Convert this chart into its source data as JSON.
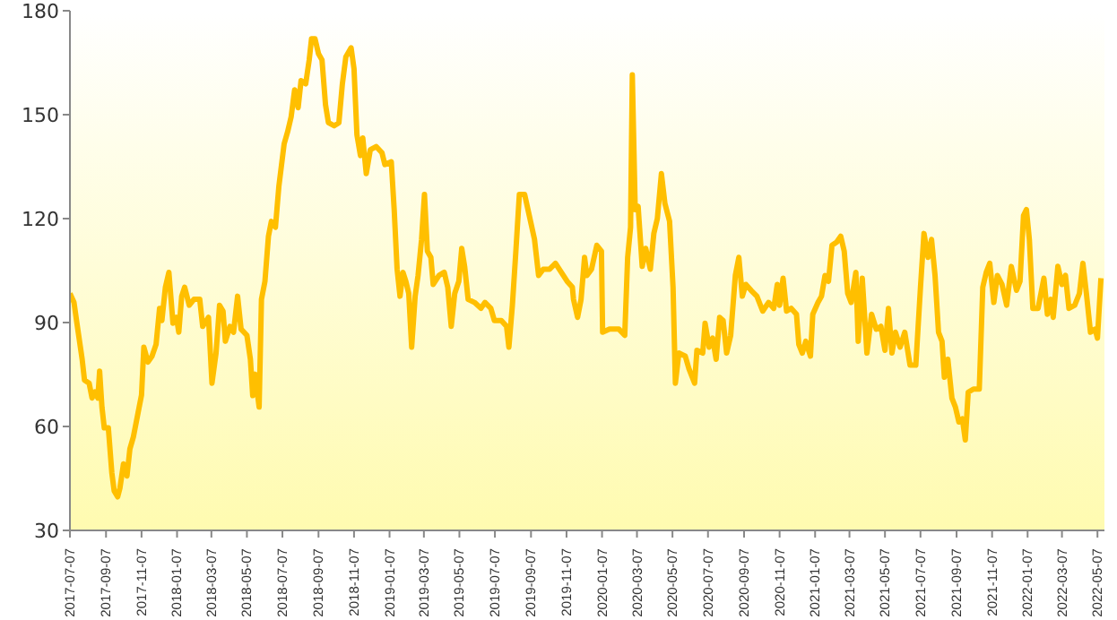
{
  "chart_data": {
    "type": "line",
    "x": [
      "2017-07-07",
      "2017-07-14",
      "2017-07-19",
      "2017-07-28",
      "2017-08-01",
      "2017-08-09",
      "2017-08-14",
      "2017-08-19",
      "2017-08-24",
      "2017-08-27",
      "2017-08-31",
      "2017-09-04",
      "2017-09-11",
      "2017-09-17",
      "2017-09-21",
      "2017-09-27",
      "2017-10-01",
      "2017-10-07",
      "2017-10-13",
      "2017-10-18",
      "2017-10-24",
      "2017-11-01",
      "2017-11-07",
      "2017-11-11",
      "2017-11-18",
      "2017-11-25",
      "2017-12-02",
      "2017-12-08",
      "2017-12-12",
      "2017-12-18",
      "2017-12-24",
      "2017-12-31",
      "2018-01-06",
      "2018-01-10",
      "2018-01-15",
      "2018-01-20",
      "2018-01-28",
      "2018-02-05",
      "2018-02-15",
      "2018-02-20",
      "2018-03-02",
      "2018-03-08",
      "2018-03-15",
      "2018-03-21",
      "2018-03-27",
      "2018-03-31",
      "2018-04-08",
      "2018-04-14",
      "2018-04-21",
      "2018-04-27",
      "2018-05-07",
      "2018-05-13",
      "2018-05-17",
      "2018-05-21",
      "2018-05-28",
      "2018-06-01",
      "2018-06-07",
      "2018-06-13",
      "2018-06-18",
      "2018-06-25",
      "2018-07-01",
      "2018-07-10",
      "2018-07-16",
      "2018-07-22",
      "2018-07-28",
      "2018-08-03",
      "2018-08-08",
      "2018-08-16",
      "2018-08-22",
      "2018-08-26",
      "2018-09-01",
      "2018-09-07",
      "2018-09-13",
      "2018-09-19",
      "2018-09-24",
      "2018-10-04",
      "2018-10-12",
      "2018-10-18",
      "2018-10-24",
      "2018-11-02",
      "2018-11-07",
      "2018-11-12",
      "2018-11-18",
      "2018-11-22",
      "2018-11-28",
      "2018-12-05",
      "2018-12-15",
      "2018-12-25",
      "2018-12-30",
      "2019-01-10",
      "2019-01-15",
      "2019-01-20",
      "2019-01-25",
      "2019-01-30",
      "2019-02-04",
      "2019-02-09",
      "2019-02-14",
      "2019-02-20",
      "2019-02-25",
      "2019-03-03",
      "2019-03-08",
      "2019-03-13",
      "2019-03-19",
      "2019-03-23",
      "2019-04-02",
      "2019-04-11",
      "2019-04-17",
      "2019-04-23",
      "2019-04-29",
      "2019-05-06",
      "2019-05-11",
      "2019-05-16",
      "2019-05-22",
      "2019-06-02",
      "2019-06-13",
      "2019-06-20",
      "2019-06-30",
      "2019-07-06",
      "2019-07-18",
      "2019-07-27",
      "2019-07-31",
      "2019-08-06",
      "2019-08-12",
      "2019-08-18",
      "2019-08-27",
      "2019-09-04",
      "2019-09-13",
      "2019-09-20",
      "2019-09-28",
      "2019-10-09",
      "2019-10-19",
      "2019-10-29",
      "2019-11-08",
      "2019-11-17",
      "2019-11-19",
      "2019-11-26",
      "2019-12-02",
      "2019-12-08",
      "2019-12-12",
      "2019-12-20",
      "2019-12-29",
      "2020-01-06",
      "2020-01-08",
      "2020-01-20",
      "2020-02-05",
      "2020-02-15",
      "2020-02-20",
      "2020-02-25",
      "2020-02-28",
      "2020-03-04",
      "2020-03-09",
      "2020-03-16",
      "2020-03-22",
      "2020-03-30",
      "2020-04-05",
      "2020-04-11",
      "2020-04-18",
      "2020-04-24",
      "2020-05-02",
      "2020-05-08",
      "2020-05-12",
      "2020-05-18",
      "2020-05-29",
      "2020-06-04",
      "2020-06-14",
      "2020-06-18",
      "2020-06-28",
      "2020-07-02",
      "2020-07-09",
      "2020-07-15",
      "2020-07-21",
      "2020-07-27",
      "2020-08-02",
      "2020-08-08",
      "2020-08-15",
      "2020-08-23",
      "2020-08-29",
      "2020-09-04",
      "2020-09-10",
      "2020-09-19",
      "2020-09-29",
      "2020-10-09",
      "2020-10-19",
      "2020-10-28",
      "2020-11-03",
      "2020-11-07",
      "2020-11-13",
      "2020-11-19",
      "2020-11-27",
      "2020-12-06",
      "2020-12-10",
      "2020-12-16",
      "2020-12-22",
      "2020-12-30",
      "2021-01-03",
      "2021-01-12",
      "2021-01-18",
      "2021-01-24",
      "2021-01-30",
      "2021-02-05",
      "2021-02-13",
      "2021-02-20",
      "2021-02-26",
      "2021-03-04",
      "2021-03-10",
      "2021-03-18",
      "2021-03-22",
      "2021-03-29",
      "2021-04-06",
      "2021-04-14",
      "2021-04-22",
      "2021-04-30",
      "2021-05-07",
      "2021-05-13",
      "2021-05-19",
      "2021-05-25",
      "2021-06-02",
      "2021-06-10",
      "2021-06-19",
      "2021-06-29",
      "2021-07-07",
      "2021-07-13",
      "2021-07-20",
      "2021-07-26",
      "2021-08-01",
      "2021-08-07",
      "2021-08-13",
      "2021-08-17",
      "2021-08-23",
      "2021-08-30",
      "2021-09-05",
      "2021-09-11",
      "2021-09-17",
      "2021-09-22",
      "2021-09-27",
      "2021-10-06",
      "2021-10-16",
      "2021-10-22",
      "2021-10-28",
      "2021-11-03",
      "2021-11-10",
      "2021-11-16",
      "2021-11-24",
      "2021-12-02",
      "2021-12-10",
      "2021-12-19",
      "2021-12-25",
      "2021-12-31",
      "2022-01-05",
      "2022-01-10",
      "2022-01-16",
      "2022-01-25",
      "2022-02-04",
      "2022-02-10",
      "2022-02-16",
      "2022-02-20",
      "2022-02-28",
      "2022-03-07",
      "2022-03-13",
      "2022-03-19",
      "2022-03-29",
      "2022-04-06",
      "2022-04-12",
      "2022-04-18",
      "2022-04-25",
      "2022-05-03",
      "2022-05-07",
      "2022-05-13"
    ],
    "series": [
      {
        "color": "#ffbf00",
        "values": [
          98.4,
          95.8,
          89.8,
          79.4,
          73.4,
          72.5,
          68.2,
          70,
          68.2,
          76,
          65.6,
          59.6,
          59.6,
          46.6,
          41.4,
          39.7,
          42.3,
          49.2,
          45.7,
          53.5,
          57,
          63.9,
          69.1,
          82.9,
          78.6,
          80.3,
          83.7,
          94.1,
          90.6,
          100.2,
          104.5,
          89.8,
          91.5,
          87.2,
          97.6,
          100.2,
          95,
          96.7,
          96.7,
          88.9,
          91.5,
          72.5,
          81.2,
          95,
          93.3,
          84.6,
          88.9,
          87.2,
          97.6,
          88.1,
          86.3,
          79.4,
          68.9,
          75.1,
          65.6,
          96.7,
          101.9,
          114.9,
          119.2,
          117.5,
          129.5,
          141.6,
          145.1,
          149.4,
          157.2,
          152,
          159.8,
          158.9,
          165.8,
          171.9,
          171.9,
          167.6,
          165.8,
          152.9,
          147.7,
          146.8,
          147.7,
          158.9,
          166.7,
          169.3,
          163.2,
          144.2,
          138.2,
          143.3,
          133,
          139.9,
          140.8,
          139,
          135.6,
          136.4,
          122.6,
          105.4,
          97.6,
          104.5,
          101.9,
          98.4,
          82.9,
          97.6,
          103.6,
          114,
          127,
          110.6,
          108.8,
          101,
          103.6,
          104.5,
          100.2,
          88.9,
          98.4,
          101.9,
          111.4,
          106.2,
          96.7,
          95.8,
          94.1,
          95.8,
          94.1,
          90.6,
          90.6,
          88.9,
          82.9,
          95,
          110.6,
          127,
          127,
          120.9,
          114,
          103.6,
          105.4,
          105.4,
          107.1,
          104.5,
          101.9,
          100.2,
          96.7,
          91.5,
          96.7,
          108.8,
          103.6,
          105.4,
          112.3,
          110.6,
          87.2,
          88.1,
          88.1,
          86.3,
          108.8,
          117.5,
          161.5,
          122.6,
          123.5,
          106.2,
          111.4,
          105.4,
          115.7,
          120,
          133,
          124.4,
          119.2,
          100.2,
          72.5,
          81.2,
          80.3,
          76.8,
          72.5,
          82,
          81.2,
          89.8,
          82.9,
          85.5,
          79.4,
          91.5,
          90.6,
          81.2,
          86.3,
          103.6,
          108.8,
          97.6,
          101,
          99.3,
          97.6,
          93.3,
          95.8,
          94.1,
          101,
          95,
          102.8,
          93.3,
          94.1,
          92.4,
          83.7,
          81.2,
          84.6,
          80.3,
          92.4,
          95.8,
          97.6,
          103.6,
          101.9,
          112.3,
          113.2,
          114.9,
          110.6,
          98.4,
          95.8,
          104.5,
          84.6,
          102.8,
          81.2,
          92.4,
          88.1,
          88.9,
          82,
          94.1,
          81.2,
          87.2,
          82.9,
          87.2,
          77.7,
          77.7,
          100.2,
          115.7,
          108.8,
          114,
          103.6,
          87.2,
          84.6,
          74.2,
          79.4,
          68.2,
          65.6,
          61.3,
          62.2,
          56.1,
          69.9,
          70.8,
          70.8,
          100.2,
          104.5,
          107.1,
          95.8,
          103.6,
          101,
          95,
          106.2,
          99.3,
          101.9,
          120.9,
          122.6,
          114,
          94.1,
          94.1,
          102.8,
          92.4,
          96.7,
          91.5,
          106.2,
          101,
          103.6,
          94.1,
          95,
          98.4,
          107.1,
          98.4,
          87.2,
          88.1,
          85.5,
          102.8
        ]
      }
    ],
    "xlim": [
      "2017-07-07",
      "2022-05-19"
    ],
    "xticks": [
      "2017-07-07",
      "2017-09-07",
      "2017-11-07",
      "2018-01-07",
      "2018-03-07",
      "2018-05-07",
      "2018-07-07",
      "2018-09-07",
      "2018-11-07",
      "2019-01-07",
      "2019-03-07",
      "2019-05-07",
      "2019-07-07",
      "2019-09-07",
      "2019-11-07",
      "2020-01-07",
      "2020-03-07",
      "2020-05-07",
      "2020-07-07",
      "2020-09-07",
      "2020-11-07",
      "2021-01-07",
      "2021-03-07",
      "2021-05-07",
      "2021-07-07",
      "2021-09-07",
      "2021-11-07",
      "2022-01-07",
      "2022-03-07",
      "2022-05-07"
    ],
    "ylim": [
      30,
      180
    ],
    "yticks": [
      30,
      60,
      90,
      120,
      150,
      180
    ],
    "grid": false
  }
}
